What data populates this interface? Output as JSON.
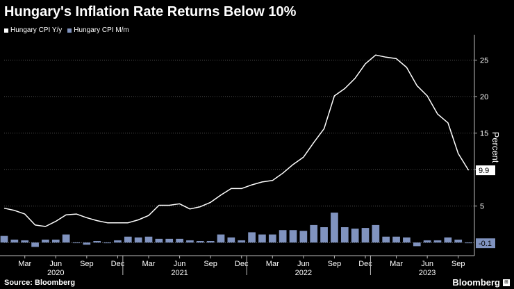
{
  "title": "Hungary's Inflation Rate Returns Below 10%",
  "source": "Source: Bloomberg",
  "brand": "Bloomberg",
  "colors": {
    "background": "#000000",
    "line": "#ffffff",
    "bar": "#8093bf",
    "grid": "#555555"
  },
  "chart_data": {
    "type": "line+bar",
    "title": "Hungary's Inflation Rate Returns Below 10%",
    "ylabel": "Percent",
    "ylim": [
      -1.8,
      28
    ],
    "y_ticks": [
      5,
      10,
      15,
      20,
      25
    ],
    "grid": true,
    "legend_position": "top-left",
    "months": [
      "Jan 2020",
      "Feb 2020",
      "Mar 2020",
      "Apr 2020",
      "May 2020",
      "Jun 2020",
      "Jul 2020",
      "Aug 2020",
      "Sep 2020",
      "Oct 2020",
      "Nov 2020",
      "Dec 2020",
      "Jan 2021",
      "Feb 2021",
      "Mar 2021",
      "Apr 2021",
      "May 2021",
      "Jun 2021",
      "Jul 2021",
      "Aug 2021",
      "Sep 2021",
      "Oct 2021",
      "Nov 2021",
      "Dec 2021",
      "Jan 2022",
      "Feb 2022",
      "Mar 2022",
      "Apr 2022",
      "May 2022",
      "Jun 2022",
      "Jul 2022",
      "Aug 2022",
      "Sep 2022",
      "Oct 2022",
      "Nov 2022",
      "Dec 2022",
      "Jan 2023",
      "Feb 2023",
      "Mar 2023",
      "Apr 2023",
      "May 2023",
      "Jun 2023",
      "Jul 2023",
      "Aug 2023",
      "Sep 2023",
      "Oct 2023"
    ],
    "x_tick_labels": [
      {
        "index": 2,
        "label": "Mar"
      },
      {
        "index": 5,
        "label": "Jun"
      },
      {
        "index": 8,
        "label": "Sep"
      },
      {
        "index": 11,
        "label": "Dec"
      },
      {
        "index": 14,
        "label": "Mar"
      },
      {
        "index": 17,
        "label": "Jun"
      },
      {
        "index": 20,
        "label": "Sep"
      },
      {
        "index": 23,
        "label": "Dec"
      },
      {
        "index": 26,
        "label": "Mar"
      },
      {
        "index": 29,
        "label": "Jun"
      },
      {
        "index": 32,
        "label": "Sep"
      },
      {
        "index": 35,
        "label": "Dec"
      },
      {
        "index": 38,
        "label": "Mar"
      },
      {
        "index": 41,
        "label": "Jun"
      },
      {
        "index": 44,
        "label": "Sep"
      }
    ],
    "year_labels": [
      {
        "index": 5,
        "label": "2020"
      },
      {
        "index": 17,
        "label": "2021"
      },
      {
        "index": 29,
        "label": "2022"
      },
      {
        "index": 41,
        "label": "2023"
      }
    ],
    "series": [
      {
        "name": "Hungary CPI Y/y",
        "kind": "line",
        "color": "#ffffff",
        "values": [
          4.7,
          4.4,
          3.9,
          2.4,
          2.2,
          2.9,
          3.8,
          3.9,
          3.4,
          3.0,
          2.7,
          2.7,
          2.7,
          3.1,
          3.7,
          5.1,
          5.1,
          5.3,
          4.6,
          4.9,
          5.5,
          6.5,
          7.4,
          7.4,
          7.9,
          8.3,
          8.5,
          9.5,
          10.7,
          11.7,
          13.7,
          15.6,
          20.1,
          21.1,
          22.5,
          24.5,
          25.7,
          25.4,
          25.2,
          24.0,
          21.5,
          20.1,
          17.6,
          16.4,
          12.2,
          9.9
        ]
      },
      {
        "name": "Hungary CPI M/m",
        "kind": "bar",
        "color": "#8093bf",
        "values": [
          0.9,
          0.4,
          0.3,
          -0.6,
          0.4,
          0.4,
          1.1,
          0.0,
          -0.3,
          0.2,
          -0.1,
          0.3,
          0.8,
          0.7,
          0.8,
          0.5,
          0.5,
          0.5,
          0.3,
          0.2,
          0.2,
          1.1,
          0.7,
          0.3,
          1.4,
          1.1,
          1.1,
          1.7,
          1.7,
          1.6,
          2.4,
          2.1,
          4.1,
          2.1,
          1.9,
          2.0,
          2.4,
          0.8,
          0.8,
          0.7,
          -0.5,
          0.3,
          0.3,
          0.7,
          0.4,
          -0.1
        ]
      }
    ],
    "last_value_labels": [
      "9.9",
      "-0.1"
    ]
  },
  "legend": [
    {
      "label": "Hungary CPI Y/y"
    },
    {
      "label": "Hungary CPI M/m"
    }
  ]
}
